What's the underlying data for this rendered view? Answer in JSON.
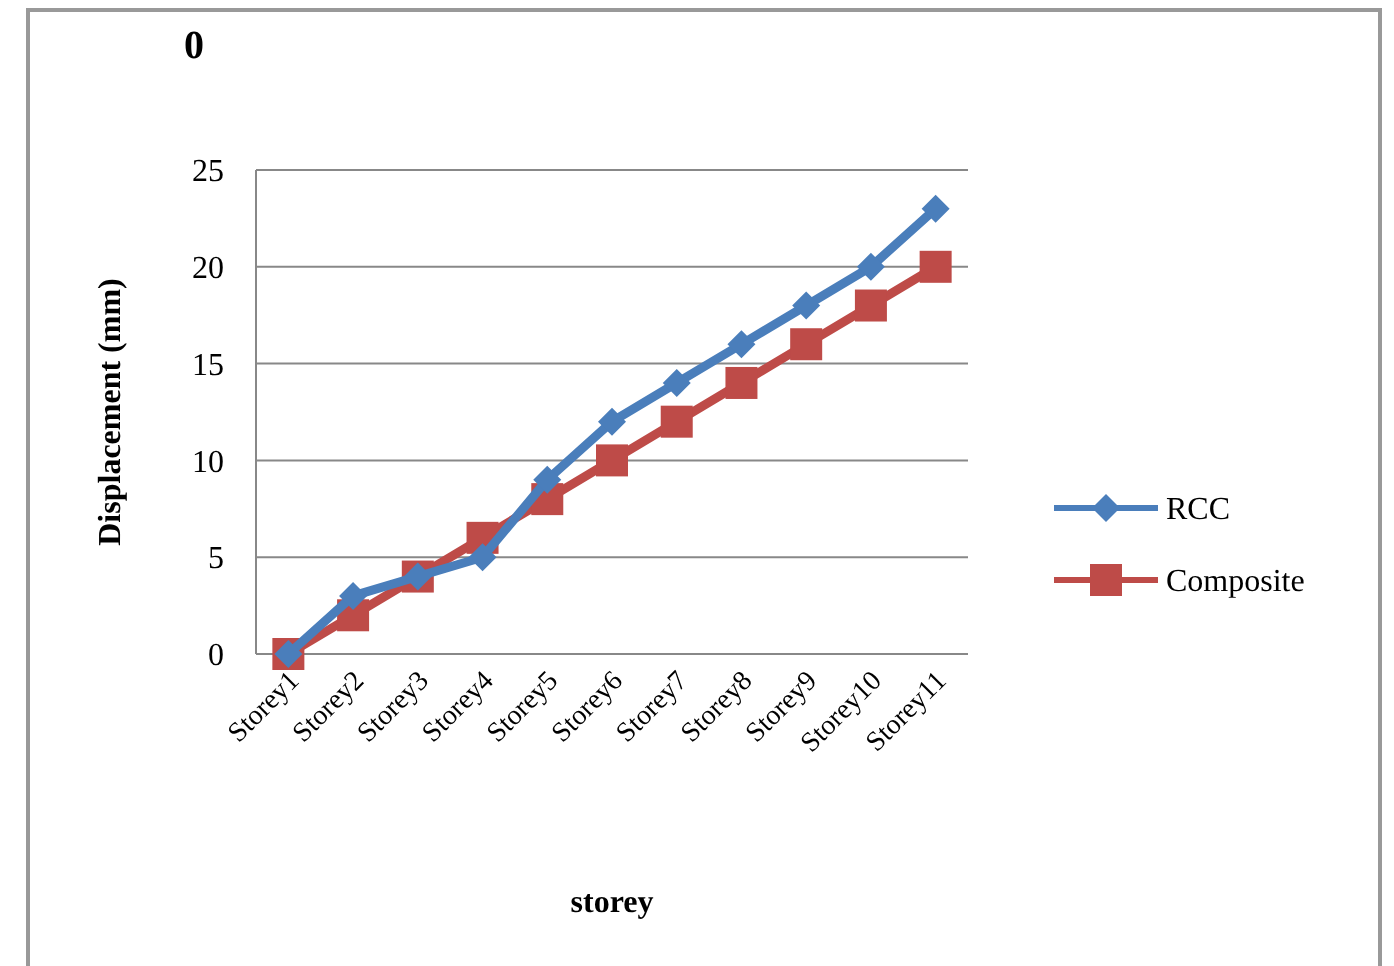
{
  "chart_data": {
    "type": "line",
    "title": "0",
    "xlabel": "storey",
    "ylabel": "Displacement (mm)",
    "categories": [
      "Storey1",
      "Storey2",
      "Storey3",
      "Storey4",
      "Storey5",
      "Storey6",
      "Storey7",
      "Storey8",
      "Storey9",
      "Storey10",
      "Storey11"
    ],
    "series": [
      {
        "name": "RCC",
        "color": "#4a7ebb",
        "marker": "diamond",
        "values": [
          0,
          3,
          4,
          5,
          9,
          12,
          14,
          16,
          18,
          20,
          23
        ]
      },
      {
        "name": "Composite",
        "color": "#be4b48",
        "marker": "square",
        "values": [
          0,
          2,
          4,
          6,
          8,
          10,
          12,
          14,
          16,
          18,
          20
        ]
      }
    ],
    "ylim": [
      0,
      25
    ],
    "yticks": [
      0,
      5,
      10,
      15,
      20,
      25
    ],
    "grid": "y",
    "legend": "right"
  }
}
